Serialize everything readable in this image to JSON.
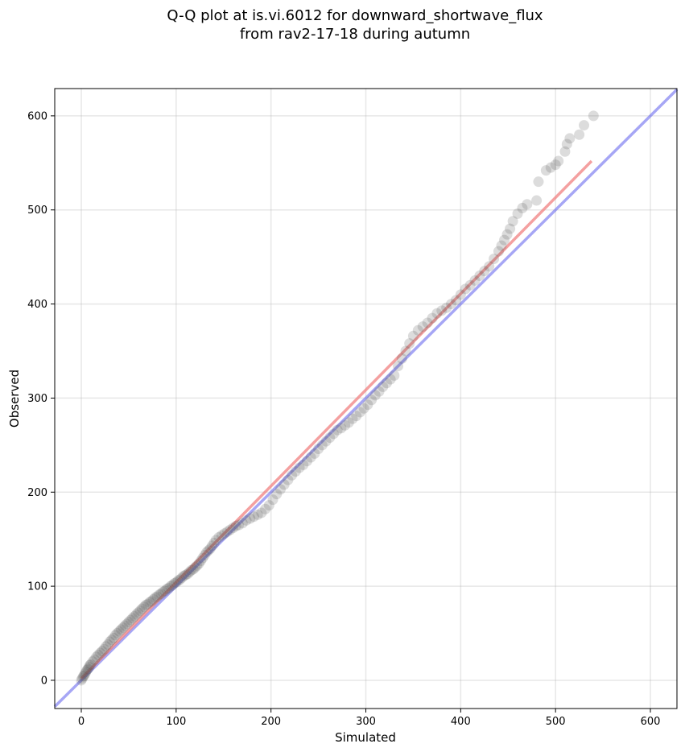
{
  "chart_data": {
    "type": "scatter",
    "title": [
      "Q-Q plot at is.vi.6012 for downward_shortwave_flux",
      "from rav2-17-18 during autumn"
    ],
    "xlabel": "Simulated",
    "ylabel": "Observed",
    "xlim": [
      -28,
      628
    ],
    "ylim": [
      -30,
      629
    ],
    "xticks": [
      0,
      100,
      200,
      300,
      400,
      500,
      600
    ],
    "yticks": [
      0,
      100,
      200,
      300,
      400,
      500,
      600
    ],
    "grid": true,
    "reference_line": {
      "x": [
        -28,
        628
      ],
      "y": [
        -28,
        628
      ],
      "color": "#6b6bef"
    },
    "fit_line": {
      "x": [
        0,
        538
      ],
      "y": [
        2,
        552
      ],
      "color": "#f08080"
    },
    "points": {
      "color": "#505050",
      "x": [
        0,
        1,
        2,
        3,
        4,
        5,
        6,
        7,
        8,
        9,
        10,
        12,
        14,
        16,
        18,
        20,
        22,
        24,
        26,
        28,
        30,
        32,
        34,
        36,
        38,
        40,
        42,
        44,
        46,
        48,
        50,
        52,
        54,
        56,
        58,
        60,
        62,
        64,
        66,
        68,
        70,
        72,
        74,
        76,
        78,
        80,
        82,
        84,
        86,
        88,
        90,
        92,
        94,
        96,
        98,
        100,
        102,
        104,
        106,
        108,
        110,
        112,
        114,
        116,
        118,
        120,
        122,
        124,
        126,
        128,
        130,
        132,
        134,
        136,
        138,
        140,
        142,
        145,
        148,
        151,
        154,
        157,
        160,
        163,
        166,
        170,
        174,
        178,
        182,
        186,
        190,
        194,
        198,
        202,
        206,
        210,
        214,
        218,
        222,
        226,
        230,
        234,
        238,
        242,
        246,
        250,
        254,
        258,
        262,
        266,
        270,
        274,
        278,
        282,
        286,
        290,
        294,
        298,
        302,
        306,
        310,
        314,
        318,
        322,
        326,
        330,
        334,
        338,
        342,
        346,
        350,
        355,
        360,
        365,
        370,
        375,
        380,
        385,
        390,
        395,
        400,
        405,
        410,
        415,
        420,
        425,
        430,
        435,
        440,
        443,
        446,
        449,
        452,
        455,
        460,
        465,
        470,
        480,
        482,
        490,
        495,
        500,
        503,
        510,
        512,
        515,
        525,
        530,
        540
      ],
      "y": [
        0,
        2,
        4,
        5,
        7,
        9,
        11,
        12,
        14,
        16,
        17,
        20,
        22,
        25,
        27,
        29,
        31,
        33,
        36,
        38,
        41,
        43,
        45,
        48,
        50,
        52,
        54,
        56,
        58,
        60,
        62,
        64,
        66,
        68,
        70,
        72,
        74,
        76,
        78,
        80,
        81,
        83,
        84,
        86,
        88,
        89,
        91,
        92,
        94,
        95,
        97,
        98,
        100,
        101,
        103,
        104,
        106,
        107,
        109,
        111,
        112,
        113,
        115,
        117,
        118,
        120,
        122,
        124,
        127,
        130,
        133,
        136,
        138,
        140,
        143,
        146,
        149,
        152,
        154,
        156,
        158,
        160,
        162,
        164,
        165,
        167,
        170,
        172,
        174,
        176,
        178,
        182,
        186,
        192,
        198,
        203,
        208,
        213,
        218,
        222,
        226,
        229,
        233,
        237,
        241,
        246,
        250,
        254,
        258,
        262,
        266,
        268,
        271,
        274,
        278,
        281,
        285,
        289,
        293,
        298,
        303,
        307,
        312,
        316,
        320,
        324,
        334,
        342,
        350,
        358,
        366,
        372,
        376,
        380,
        385,
        390,
        393,
        396,
        400,
        404,
        410,
        416,
        420,
        425,
        430,
        435,
        440,
        448,
        456,
        462,
        468,
        474,
        480,
        488,
        496,
        502,
        506,
        510,
        530,
        542,
        545,
        548,
        552,
        562,
        570,
        576,
        580,
        590,
        600
      ]
    }
  }
}
